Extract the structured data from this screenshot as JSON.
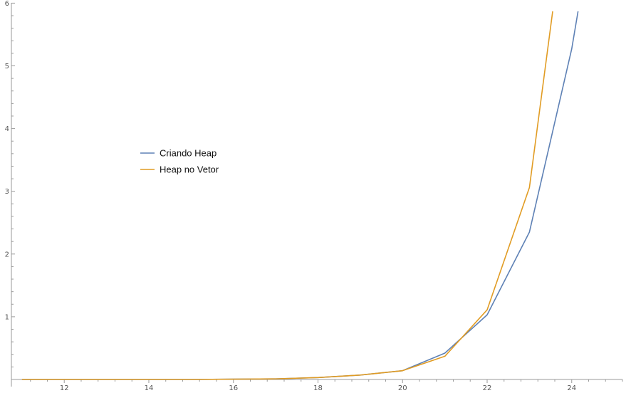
{
  "chart_data": {
    "type": "line",
    "title": "",
    "xlabel": "",
    "ylabel": "",
    "xlim": [
      10.75,
      25.2
    ],
    "ylim": [
      0,
      6.05
    ],
    "x_ticks": [
      12,
      14,
      16,
      18,
      20,
      22,
      24
    ],
    "y_ticks": [
      1,
      2,
      3,
      4,
      5,
      6
    ],
    "x_tick_labels": [
      "12",
      "14",
      "16",
      "18",
      "20",
      "22",
      "24"
    ],
    "y_tick_labels": [
      "1",
      "2",
      "3",
      "4",
      "5",
      "6"
    ],
    "grid": false,
    "legend_position": "center-left",
    "series": [
      {
        "name": "Criando Heap",
        "color": "#5e81b5",
        "x": [
          11,
          12,
          13,
          14,
          15,
          16,
          17,
          18,
          19,
          20,
          21,
          22,
          23,
          24,
          24.15
        ],
        "y": [
          0.0,
          0.0,
          0.0,
          0.0,
          0.0,
          0.005,
          0.01,
          0.03,
          0.07,
          0.14,
          0.42,
          1.03,
          2.35,
          5.27,
          5.87
        ]
      },
      {
        "name": "Heap no Vetor",
        "color": "#e19c24",
        "x": [
          11,
          12,
          13,
          14,
          15,
          16,
          17,
          18,
          19,
          20,
          21,
          22,
          23,
          23.55
        ],
        "y": [
          0.0,
          0.0,
          0.0,
          0.0,
          0.0,
          0.005,
          0.01,
          0.03,
          0.07,
          0.14,
          0.37,
          1.11,
          3.06,
          5.87
        ]
      }
    ]
  }
}
